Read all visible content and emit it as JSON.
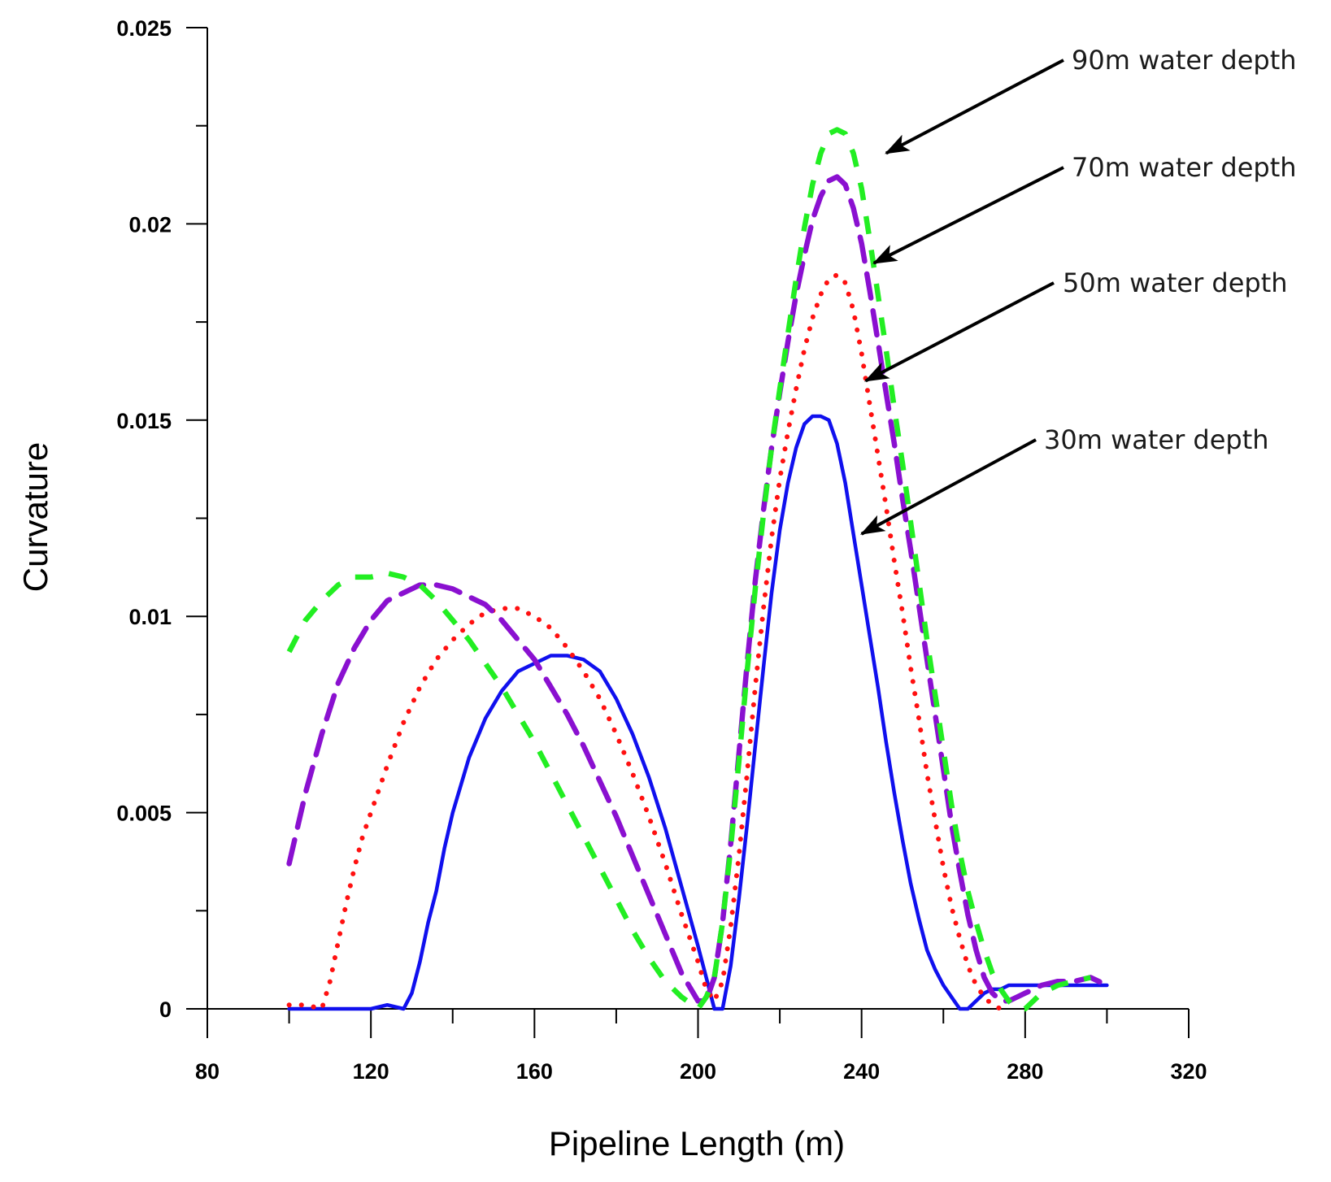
{
  "chart_data": {
    "type": "line",
    "title": "",
    "xlabel": "Pipeline Length (m)",
    "ylabel": "Curvature",
    "xlim": [
      80,
      320
    ],
    "ylim": [
      0,
      0.025
    ],
    "grid": false,
    "legend": "none",
    "x_ticks": [
      {
        "value": 80,
        "label": "80"
      },
      {
        "value": 120,
        "label": "120"
      },
      {
        "value": 160,
        "label": "160"
      },
      {
        "value": 200,
        "label": "200"
      },
      {
        "value": 240,
        "label": "240"
      },
      {
        "value": 280,
        "label": "280"
      },
      {
        "value": 320,
        "label": "320"
      }
    ],
    "y_ticks": [
      {
        "value": 0,
        "label": "0"
      },
      {
        "value": 0.005,
        "label": "0.005"
      },
      {
        "value": 0.01,
        "label": "0.01"
      },
      {
        "value": 0.015,
        "label": "0.015"
      },
      {
        "value": 0.02,
        "label": "0.02"
      },
      {
        "value": 0.025,
        "label": "0.025"
      }
    ],
    "series": [
      {
        "name": "30m water depth",
        "color": "#1010ee",
        "style": "solid",
        "x": [
          100,
          104,
          108,
          112,
          116,
          120,
          124,
          128,
          130,
          132,
          134,
          136,
          138,
          140,
          144,
          148,
          152,
          156,
          160,
          164,
          168,
          172,
          176,
          180,
          184,
          188,
          192,
          196,
          200,
          202,
          204,
          206,
          208,
          210,
          212,
          214,
          216,
          218,
          220,
          222,
          224,
          226,
          228,
          230,
          232,
          234,
          236,
          238,
          240,
          242,
          244,
          246,
          248,
          250,
          252,
          254,
          256,
          258,
          260,
          262,
          264,
          266,
          268,
          270,
          272,
          274,
          276,
          280,
          284,
          288,
          292,
          296,
          298,
          300
        ],
        "y": [
          0.0,
          0.0,
          0.0,
          0.0,
          0.0,
          0.0,
          0.0001,
          0.0,
          0.0004,
          0.0012,
          0.0022,
          0.003,
          0.0041,
          0.005,
          0.0064,
          0.0074,
          0.0081,
          0.0086,
          0.0088,
          0.009,
          0.009,
          0.0089,
          0.0086,
          0.0079,
          0.007,
          0.0059,
          0.0046,
          0.0031,
          0.0016,
          0.0008,
          0.0,
          0.0,
          0.0011,
          0.0028,
          0.0047,
          0.0067,
          0.0087,
          0.0106,
          0.0122,
          0.0134,
          0.0143,
          0.0149,
          0.0151,
          0.0151,
          0.015,
          0.0144,
          0.0134,
          0.0121,
          0.0108,
          0.0095,
          0.0082,
          0.0068,
          0.0055,
          0.0043,
          0.0032,
          0.0023,
          0.0015,
          0.001,
          0.0006,
          0.0003,
          0.0,
          0.0,
          0.0002,
          0.0004,
          0.0005,
          0.0005,
          0.0006,
          0.0006,
          0.0006,
          0.0006,
          0.0006,
          0.0006,
          0.0006,
          0.0006
        ]
      },
      {
        "name": "50m water depth",
        "color": "#ff1010",
        "style": "dotted",
        "x": [
          100,
          104,
          108,
          110,
          112,
          114,
          116,
          118,
          120,
          124,
          128,
          132,
          136,
          140,
          144,
          148,
          152,
          156,
          160,
          164,
          168,
          172,
          176,
          180,
          184,
          188,
          192,
          196,
          200,
          202,
          204,
          206,
          208,
          210,
          212,
          214,
          216,
          218,
          220,
          222,
          224,
          226,
          228,
          230,
          232,
          234,
          236,
          238,
          240,
          242,
          244,
          246,
          248,
          250,
          252,
          254,
          256,
          258,
          260,
          262,
          264,
          266,
          268,
          270,
          272,
          274,
          276
        ],
        "y": [
          0.0001,
          0.0001,
          0.0,
          0.0007,
          0.0017,
          0.0027,
          0.0036,
          0.0044,
          0.005,
          0.0062,
          0.0073,
          0.0082,
          0.0089,
          0.0094,
          0.0098,
          0.0101,
          0.0102,
          0.0102,
          0.01,
          0.0097,
          0.0092,
          0.0086,
          0.0079,
          0.007,
          0.006,
          0.0049,
          0.0037,
          0.0024,
          0.0012,
          0.0005,
          0.0002,
          0.0007,
          0.0021,
          0.0039,
          0.006,
          0.0082,
          0.0102,
          0.012,
          0.0135,
          0.0147,
          0.0158,
          0.0168,
          0.0176,
          0.0182,
          0.0186,
          0.0187,
          0.0185,
          0.0178,
          0.0167,
          0.0154,
          0.0141,
          0.0128,
          0.0114,
          0.0101,
          0.0087,
          0.0074,
          0.006,
          0.0048,
          0.0036,
          0.0026,
          0.0018,
          0.0011,
          0.0006,
          0.0003,
          0.0001,
          0.0,
          0.0
        ]
      },
      {
        "name": "70m water depth",
        "color": "#8a10d0",
        "style": "dashed",
        "x": [
          100,
          104,
          108,
          112,
          116,
          120,
          124,
          128,
          132,
          136,
          140,
          144,
          148,
          152,
          156,
          160,
          164,
          168,
          172,
          176,
          180,
          184,
          188,
          192,
          196,
          200,
          202,
          204,
          206,
          208,
          210,
          212,
          214,
          216,
          218,
          220,
          222,
          224,
          226,
          228,
          230,
          232,
          234,
          236,
          238,
          240,
          242,
          244,
          246,
          248,
          250,
          252,
          254,
          256,
          258,
          260,
          262,
          264,
          266,
          268,
          270,
          272,
          274,
          276,
          278,
          280,
          284,
          288,
          292,
          296,
          300
        ],
        "y": [
          0.0037,
          0.0055,
          0.007,
          0.0083,
          0.0092,
          0.0099,
          0.0104,
          0.0106,
          0.0108,
          0.0108,
          0.0107,
          0.0105,
          0.0103,
          0.0099,
          0.0094,
          0.0089,
          0.0082,
          0.0075,
          0.0067,
          0.0058,
          0.0049,
          0.0039,
          0.0029,
          0.0019,
          0.0009,
          0.0002,
          0.0002,
          0.0008,
          0.0022,
          0.0042,
          0.0065,
          0.0088,
          0.0109,
          0.0127,
          0.0143,
          0.0157,
          0.017,
          0.0182,
          0.0192,
          0.0201,
          0.0207,
          0.0211,
          0.0212,
          0.021,
          0.0204,
          0.0195,
          0.0183,
          0.017,
          0.0157,
          0.0144,
          0.013,
          0.0117,
          0.0103,
          0.0089,
          0.0075,
          0.0061,
          0.0047,
          0.0035,
          0.0024,
          0.0015,
          0.0008,
          0.0004,
          0.0002,
          0.0002,
          0.0003,
          0.0004,
          0.0006,
          0.0007,
          0.0007,
          0.0008,
          0.0006
        ]
      },
      {
        "name": "90m water depth",
        "color": "#22ee22",
        "style": "dashed",
        "x": [
          100,
          104,
          108,
          112,
          116,
          120,
          124,
          128,
          132,
          136,
          140,
          144,
          148,
          152,
          156,
          160,
          164,
          168,
          172,
          176,
          180,
          184,
          188,
          192,
          196,
          200,
          202,
          204,
          206,
          208,
          210,
          212,
          214,
          216,
          218,
          220,
          222,
          224,
          226,
          228,
          230,
          232,
          234,
          236,
          238,
          240,
          242,
          244,
          246,
          248,
          250,
          252,
          254,
          256,
          258,
          260,
          262,
          264,
          266,
          268,
          270,
          272,
          274,
          276,
          278,
          280,
          282,
          284,
          288,
          292,
          296
        ],
        "y": [
          0.0091,
          0.0099,
          0.0104,
          0.0108,
          0.011,
          0.011,
          0.0111,
          0.011,
          0.0108,
          0.0104,
          0.0099,
          0.0094,
          0.0088,
          0.0082,
          0.0075,
          0.0068,
          0.006,
          0.0052,
          0.0044,
          0.0036,
          0.0028,
          0.002,
          0.0013,
          0.0007,
          0.0003,
          0.0,
          0.0003,
          0.0008,
          0.0022,
          0.0041,
          0.0063,
          0.0086,
          0.0107,
          0.0126,
          0.0143,
          0.0158,
          0.0172,
          0.0186,
          0.0199,
          0.021,
          0.0218,
          0.0223,
          0.0224,
          0.0223,
          0.0218,
          0.0209,
          0.0196,
          0.0182,
          0.0168,
          0.0153,
          0.0139,
          0.0124,
          0.0109,
          0.0094,
          0.008,
          0.0066,
          0.0052,
          0.004,
          0.003,
          0.0022,
          0.0015,
          0.0009,
          0.0005,
          0.0002,
          0.0,
          0.0,
          0.0002,
          0.0004,
          0.0006,
          0.0007,
          0.0008
        ]
      }
    ],
    "annotations": [
      {
        "text": "90m water depth",
        "x": 246,
        "y": 0.0218
      },
      {
        "text": "70m water depth",
        "x": 243,
        "y": 0.019
      },
      {
        "text": "50m water depth",
        "x": 241,
        "y": 0.016
      },
      {
        "text": "30m water depth",
        "x": 240,
        "y": 0.0121
      }
    ]
  }
}
